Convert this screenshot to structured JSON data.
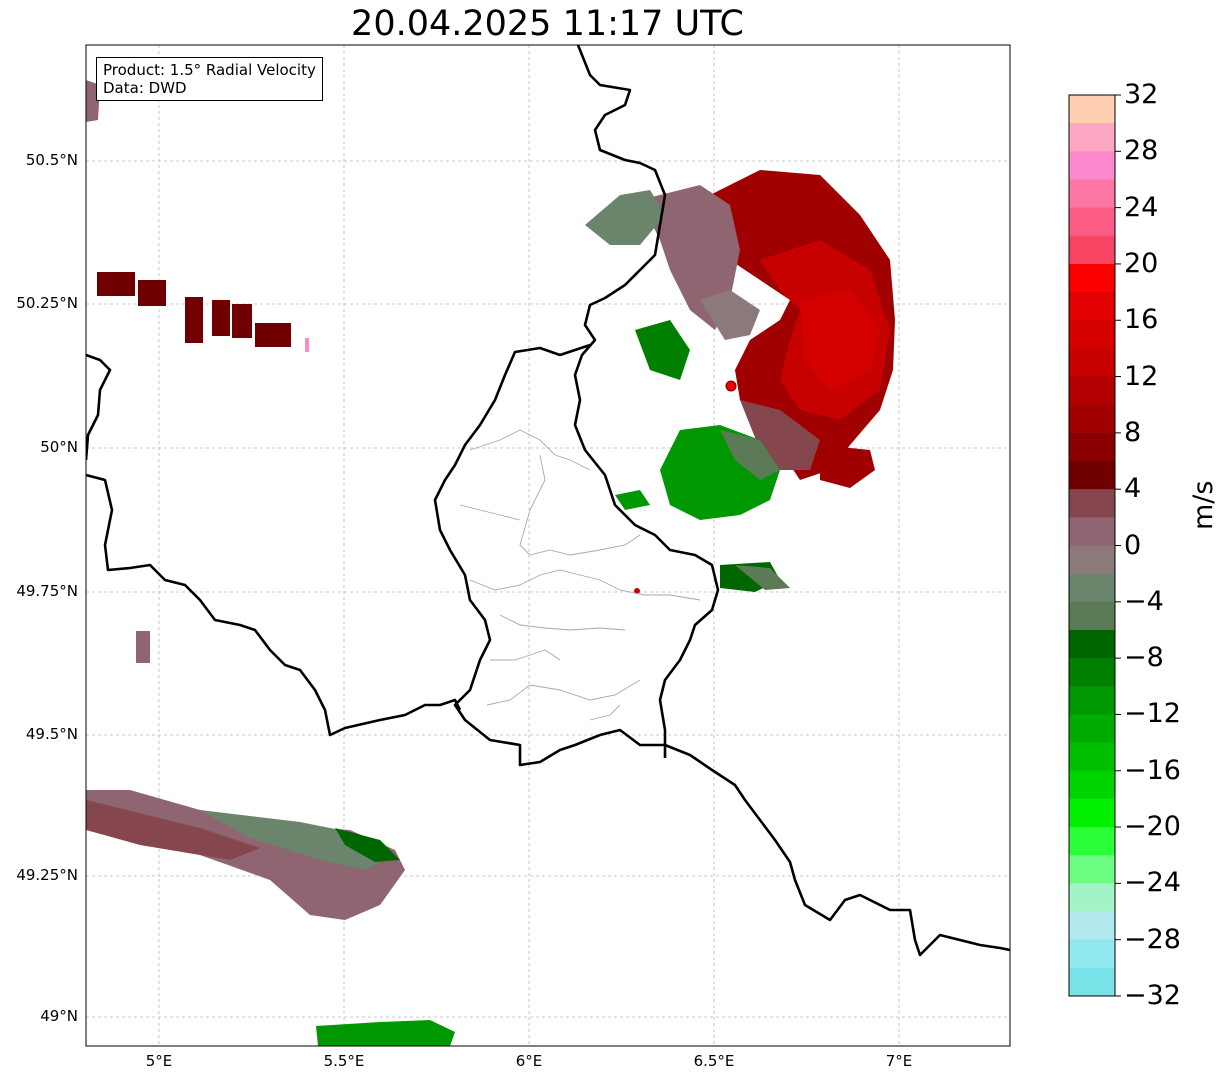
{
  "title": "20.04.2025 11:17 UTC",
  "info_box": {
    "product": "Product: 1.5° Radial Velocity",
    "source": "Data: DWD"
  },
  "latitude_labels": [
    "50.5°N",
    "50.25°N",
    "50°N",
    "49.75°N",
    "49.5°N",
    "49.25°N",
    "49°N"
  ],
  "longitude_labels": [
    "5°E",
    "5.5°E",
    "6°E",
    "6.5°E",
    "7°E"
  ],
  "colorbar": {
    "unit": "m/s",
    "tick_labels": [
      "32",
      "28",
      "24",
      "20",
      "16",
      "12",
      "8",
      "4",
      "0",
      "−4",
      "−8",
      "−12",
      "−16",
      "−20",
      "−24",
      "−28",
      "−32"
    ],
    "colors_top_to_bottom": [
      "#fecfb0",
      "#fea7c3",
      "#fd89cf",
      "#fc76a6",
      "#fa5c85",
      "#f94564",
      "#fb0000",
      "#e30000",
      "#d50000",
      "#c70000",
      "#b20000",
      "#a00000",
      "#8a0000",
      "#700000",
      "#86464e",
      "#8e6570",
      "#8b7a79",
      "#6b856c",
      "#5a7b56",
      "#006700",
      "#007f00",
      "#009800",
      "#00ac00",
      "#00bf00",
      "#00d400",
      "#00f000",
      "#2bff3a",
      "#6afd80",
      "#a2f3c6",
      "#b1e9ef",
      "#91e8ef",
      "#78e2e8"
    ]
  },
  "radar_site_color": "#f00000",
  "chart_data": {
    "type": "map",
    "lon_range": [
      4.8,
      7.3
    ],
    "lat_range": [
      48.95,
      50.7
    ],
    "radar_site": {
      "lon": 6.55,
      "lat": 50.11
    },
    "colorbar_range": [
      -32,
      32
    ]
  }
}
